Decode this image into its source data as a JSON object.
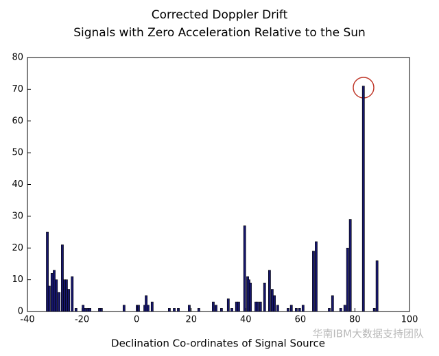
{
  "chart_data": {
    "type": "bar",
    "title": "Corrected Doppler Drift",
    "subtitle": "Signals with Zero Acceleration Relative to the Sun",
    "x_label": "Declination Co-ordinates of Signal Source",
    "watermark": "华南IBM大数据支持团队",
    "x": [
      -32.7,
      -32.0,
      -31.0,
      -30.2,
      -29.4,
      -28.4,
      -27.2,
      -26.4,
      -25.7,
      -24.9,
      -23.6,
      -22.2,
      -19.6,
      -18.9,
      -17.9,
      -17.1,
      -13.6,
      -12.9,
      -4.6,
      0.2,
      0.7,
      3.0,
      3.5,
      4.2,
      5.7,
      12.0,
      13.8,
      15.3,
      19.3,
      22.8,
      28.1,
      29.1,
      31.1,
      33.6,
      34.9,
      36.6,
      37.4,
      39.6,
      40.7,
      41.2,
      41.7,
      43.7,
      44.4,
      45.4,
      46.9,
      48.7,
      49.7,
      50.5,
      51.7,
      55.5,
      56.7,
      58.5,
      59.7,
      61.0,
      64.8,
      65.8,
      70.6,
      71.8,
      74.8,
      76.3,
      77.3,
      78.3,
      83.1,
      87.1,
      88.1
    ],
    "values": [
      25,
      8,
      12,
      13,
      10,
      6,
      21,
      10,
      10,
      7,
      11,
      1,
      2,
      1,
      1,
      1,
      1,
      1,
      2,
      2,
      2,
      2,
      5,
      2,
      3,
      1,
      1,
      1,
      2,
      1,
      3,
      2,
      1,
      4,
      1,
      3,
      3,
      27,
      11,
      10,
      9,
      3,
      3,
      3,
      9,
      13,
      7,
      5,
      2,
      1,
      2,
      1,
      1,
      2,
      19,
      22,
      1,
      5,
      1,
      2,
      20,
      29,
      71,
      1,
      16
    ],
    "color": "#16166b",
    "xlim": [
      -40,
      100
    ],
    "xticks": [
      -40,
      -20,
      0,
      20,
      40,
      60,
      80,
      100
    ],
    "ylim": [
      0,
      80
    ],
    "yticks": [
      0,
      10,
      20,
      30,
      40,
      50,
      60,
      70,
      80
    ],
    "grid": false
  }
}
